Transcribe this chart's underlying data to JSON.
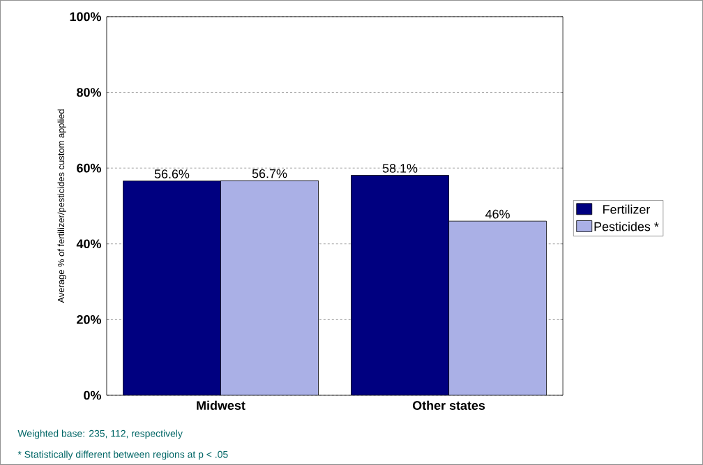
{
  "chart_data": {
    "type": "bar",
    "ylabel": "Average % of fertilizer/pesticides custom applied",
    "categories": [
      "Midwest",
      "Other states"
    ],
    "series": [
      {
        "name": "Fertilizer",
        "color": "#000080",
        "values": [
          56.6,
          58.1
        ],
        "value_labels": [
          "56.6%",
          "58.1%"
        ]
      },
      {
        "name": "Pesticides *",
        "color": "#aab0e6",
        "values": [
          56.7,
          46
        ],
        "value_labels": [
          "56.7%",
          "46%"
        ]
      }
    ],
    "ylim": [
      0,
      100
    ],
    "yticks": [
      {
        "value": 0,
        "label": "0%"
      },
      {
        "value": 20,
        "label": "20%"
      },
      {
        "value": 40,
        "label": "40%"
      },
      {
        "value": 60,
        "label": "60%"
      },
      {
        "value": 80,
        "label": "80%"
      },
      {
        "value": 100,
        "label": "100%"
      }
    ],
    "grid": "y",
    "legend": "right",
    "annotations": [
      "Weighted base: 235, 112, respectively",
      "* Statistically different between regions at p < .05"
    ]
  }
}
